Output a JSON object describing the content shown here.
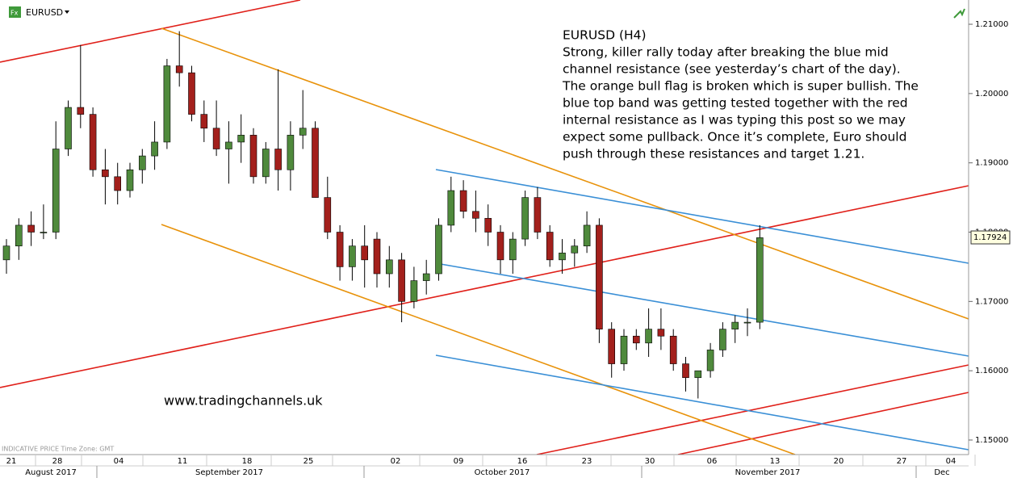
{
  "chart_data": {
    "type": "candlestick",
    "symbol": "EURUSD",
    "footnote": "INDICATIVE PRICE   Time Zone: GMT",
    "watermark": "www.tradingchannels.uk",
    "annotation": {
      "title": "EURUSD (H4)",
      "lines": [
        "Strong, killer rally today after breaking the blue mid",
        "channel resistance (see yesterday’s chart of the day).",
        "The orange bull flag is broken which is super bullish. The",
        "blue top band was getting tested together with the red",
        "internal resistance as I was typing this post so we may",
        "expect some pullback. Once it’s complete, Euro should",
        "push through these resistances and target 1.21."
      ]
    },
    "ylim": [
      1.1479,
      1.2135
    ],
    "yticks": [
      {
        "value": 1.15,
        "label": "1.15000"
      },
      {
        "value": 1.16,
        "label": "1.16000"
      },
      {
        "value": 1.17,
        "label": "1.17000"
      },
      {
        "value": 1.18,
        "label": "1.18000"
      },
      {
        "value": 1.19,
        "label": "1.19000"
      },
      {
        "value": 1.2,
        "label": "1.20000"
      },
      {
        "value": 1.21,
        "label": "1.21000"
      }
    ],
    "last_price": 1.17924,
    "day_labels": [
      "21",
      "28",
      "04",
      "11",
      "18",
      "25",
      "02",
      "09",
      "16",
      "23",
      "30",
      "06",
      "13",
      "20",
      "27",
      "04"
    ],
    "month_labels": [
      "August 2017",
      "September 2017",
      "October 2017",
      "November 2017",
      "Dec"
    ],
    "up_color": "#4f8a3c",
    "down_color": "#a3201c",
    "open": [
      1.176,
      1.178,
      1.181,
      1.18,
      1.18,
      1.192,
      1.198,
      1.197,
      1.189,
      1.188,
      1.186,
      1.189,
      1.191,
      1.193,
      1.204,
      1.203,
      1.197,
      1.195,
      1.192,
      1.193,
      1.194,
      1.188,
      1.192,
      1.189,
      1.194,
      1.195,
      1.185,
      1.18,
      1.175,
      1.178,
      1.179,
      1.174,
      1.176,
      1.17,
      1.173,
      1.174,
      1.181,
      1.186,
      1.183,
      1.182,
      1.18,
      1.176,
      1.179,
      1.185,
      1.18,
      1.176,
      1.177,
      1.178,
      1.181,
      1.166,
      1.161,
      1.165,
      1.164,
      1.166,
      1.165,
      1.161,
      1.159,
      1.16,
      1.163,
      1.166,
      1.167,
      1.167
    ],
    "high": [
      1.179,
      1.182,
      1.183,
      1.184,
      1.196,
      1.199,
      1.207,
      1.198,
      1.192,
      1.19,
      1.19,
      1.192,
      1.196,
      1.205,
      1.209,
      1.204,
      1.199,
      1.199,
      1.196,
      1.197,
      1.195,
      1.193,
      1.2035,
      1.196,
      1.2005,
      1.196,
      1.188,
      1.181,
      1.179,
      1.181,
      1.18,
      1.178,
      1.177,
      1.175,
      1.176,
      1.182,
      1.188,
      1.1875,
      1.186,
      1.184,
      1.181,
      1.18,
      1.186,
      1.1865,
      1.181,
      1.179,
      1.179,
      1.183,
      1.182,
      1.167,
      1.166,
      1.166,
      1.169,
      1.169,
      1.166,
      1.162,
      1.16,
      1.164,
      1.167,
      1.168,
      1.169,
      1.181
    ],
    "low": [
      1.174,
      1.176,
      1.178,
      1.179,
      1.179,
      1.191,
      1.195,
      1.188,
      1.184,
      1.184,
      1.185,
      1.187,
      1.189,
      1.192,
      1.201,
      1.196,
      1.193,
      1.191,
      1.187,
      1.19,
      1.187,
      1.187,
      1.186,
      1.186,
      1.192,
      1.185,
      1.179,
      1.173,
      1.173,
      1.172,
      1.172,
      1.172,
      1.167,
      1.169,
      1.171,
      1.173,
      1.18,
      1.182,
      1.18,
      1.178,
      1.174,
      1.174,
      1.178,
      1.179,
      1.175,
      1.174,
      1.175,
      1.177,
      1.164,
      1.159,
      1.16,
      1.163,
      1.162,
      1.163,
      1.16,
      1.157,
      1.156,
      1.159,
      1.162,
      1.164,
      1.165,
      1.166
    ],
    "close": [
      1.178,
      1.181,
      1.18,
      1.18,
      1.192,
      1.198,
      1.197,
      1.189,
      1.188,
      1.186,
      1.189,
      1.191,
      1.193,
      1.204,
      1.203,
      1.197,
      1.195,
      1.192,
      1.193,
      1.194,
      1.188,
      1.192,
      1.189,
      1.194,
      1.195,
      1.185,
      1.18,
      1.175,
      1.178,
      1.176,
      1.174,
      1.176,
      1.17,
      1.173,
      1.174,
      1.181,
      1.186,
      1.183,
      1.182,
      1.18,
      1.176,
      1.179,
      1.185,
      1.18,
      1.176,
      1.177,
      1.178,
      1.181,
      1.166,
      1.161,
      1.165,
      1.164,
      1.166,
      1.165,
      1.161,
      1.159,
      1.16,
      1.163,
      1.166,
      1.167,
      1.167,
      1.1792
    ]
  }
}
